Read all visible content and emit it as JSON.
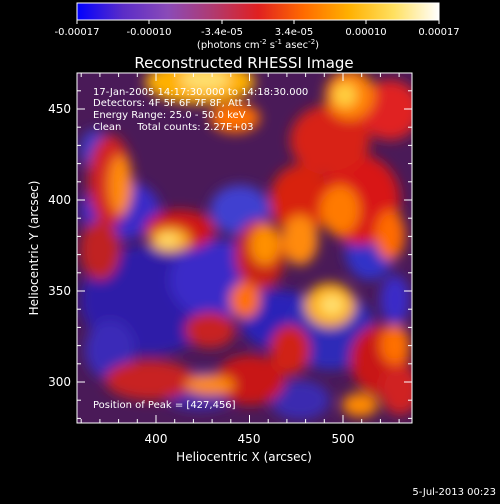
{
  "colorbar": {
    "ticks": [
      "-0.00017",
      "-0.00010",
      "-3.4e-05",
      "3.4e-05",
      "0.00010",
      "0.00017"
    ],
    "units_parts": [
      "(photons cm",
      "-2",
      " s",
      "-1",
      " asec",
      "-2",
      ")"
    ],
    "colors": [
      "#0000ff",
      "#5a2cc8",
      "#8a4ab8",
      "#b03a70",
      "#e02020",
      "#ff6a00",
      "#ffb000",
      "#ffe060",
      "#ffffff"
    ]
  },
  "plot": {
    "title": "Reconstructed RHESSI Image",
    "xlabel": "Heliocentric X (arcsec)",
    "ylabel": "Heliocentric Y (arcsec)",
    "xticks": [
      "400",
      "450",
      "500"
    ],
    "yticks": [
      "300",
      "350",
      "400",
      "450"
    ]
  },
  "annotations": {
    "lines": [
      "17-Jan-2005 14:17:30.000 to 14:18:30.000",
      "Detectors: 4F 5F 6F 7F 8F, Att 1",
      "Energy Range: 25.0 - 50.0 keV",
      "Clean     Total counts: 2.27E+03"
    ],
    "peak": "Position of Peak = [427,456]"
  },
  "footer": {
    "date": "5-Jul-2013 00:23"
  }
}
